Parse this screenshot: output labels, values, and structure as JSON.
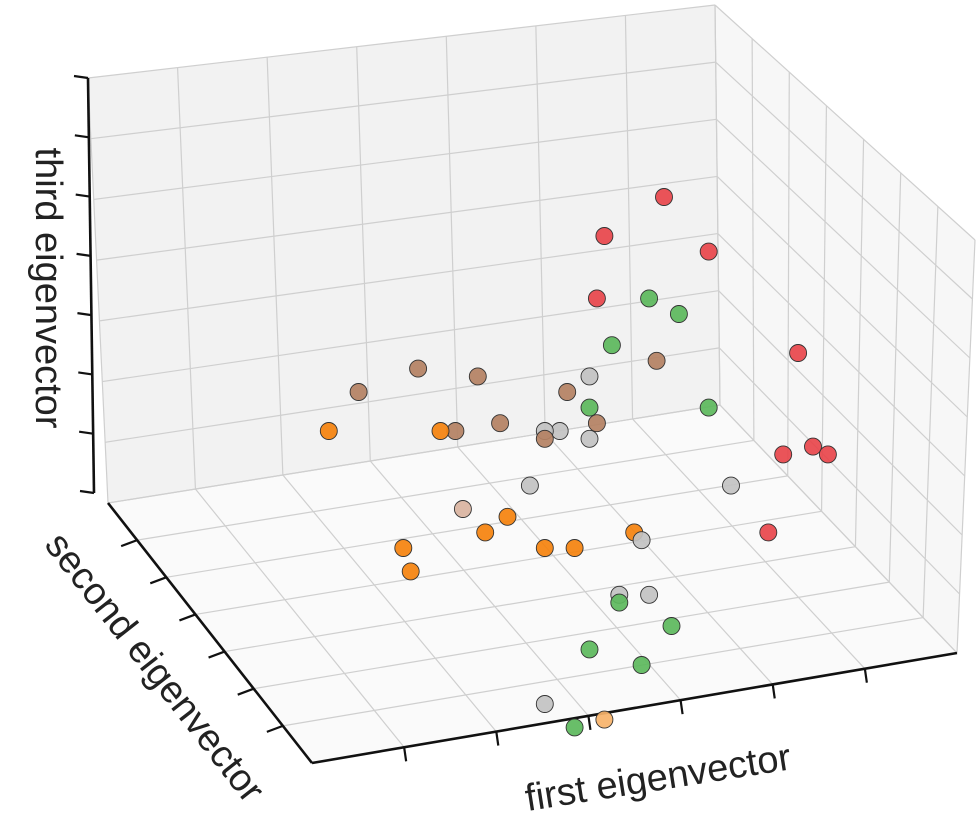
{
  "chart_data": {
    "type": "scatter",
    "title": "",
    "xlabel": "first eigenvector",
    "ylabel": "second eigenvector",
    "zlabel": "third eigenvector",
    "grid": true,
    "colors": {
      "red": "#e8454b",
      "orange": "#f5820d",
      "brown": "#b48163",
      "green": "#5cb85c",
      "gray": "#c2c2c2",
      "light_orange": "#f7b36a",
      "light_brown": "#d9b3a0"
    },
    "points": [
      {
        "x": 0.8,
        "y": 0.2,
        "z": 0.85,
        "color": "red"
      },
      {
        "x": 0.72,
        "y": 0.22,
        "z": 0.8,
        "color": "red"
      },
      {
        "x": 0.86,
        "y": 0.2,
        "z": 0.78,
        "color": "red"
      },
      {
        "x": 0.71,
        "y": 0.3,
        "z": 0.72,
        "color": "red"
      },
      {
        "x": 0.78,
        "y": 0.28,
        "z": 0.72,
        "color": "green"
      },
      {
        "x": 0.82,
        "y": 0.28,
        "z": 0.7,
        "color": "green"
      },
      {
        "x": 0.73,
        "y": 0.34,
        "z": 0.66,
        "color": "green"
      },
      {
        "x": 0.79,
        "y": 0.36,
        "z": 0.64,
        "color": "brown"
      },
      {
        "x": 0.98,
        "y": 0.25,
        "z": 0.65,
        "color": "red"
      },
      {
        "x": 0.96,
        "y": 0.35,
        "z": 0.52,
        "color": "red"
      },
      {
        "x": 1.0,
        "y": 0.33,
        "z": 0.53,
        "color": "red"
      },
      {
        "x": 1.02,
        "y": 0.32,
        "z": 0.52,
        "color": "red"
      },
      {
        "x": 0.94,
        "y": 0.5,
        "z": 0.42,
        "color": "red"
      },
      {
        "x": 0.89,
        "y": 0.55,
        "z": 0.48,
        "color": "gray"
      },
      {
        "x": 0.86,
        "y": 0.45,
        "z": 0.58,
        "color": "green"
      },
      {
        "x": 0.7,
        "y": 0.38,
        "z": 0.62,
        "color": "gray"
      },
      {
        "x": 0.67,
        "y": 0.42,
        "z": 0.6,
        "color": "brown"
      },
      {
        "x": 0.7,
        "y": 0.44,
        "z": 0.58,
        "color": "green"
      },
      {
        "x": 0.71,
        "y": 0.46,
        "z": 0.56,
        "color": "brown"
      },
      {
        "x": 0.66,
        "y": 0.47,
        "z": 0.55,
        "color": "gray"
      },
      {
        "x": 0.7,
        "y": 0.48,
        "z": 0.54,
        "color": "gray"
      },
      {
        "x": 0.64,
        "y": 0.49,
        "z": 0.55,
        "color": "gray"
      },
      {
        "x": 0.64,
        "y": 0.5,
        "z": 0.54,
        "color": "brown"
      },
      {
        "x": 0.62,
        "y": 0.56,
        "z": 0.48,
        "color": "gray"
      },
      {
        "x": 0.55,
        "y": 0.42,
        "z": 0.62,
        "color": "brown"
      },
      {
        "x": 0.47,
        "y": 0.41,
        "z": 0.63,
        "color": "brown"
      },
      {
        "x": 0.58,
        "y": 0.47,
        "z": 0.56,
        "color": "brown"
      },
      {
        "x": 0.52,
        "y": 0.48,
        "z": 0.55,
        "color": "brown"
      },
      {
        "x": 0.5,
        "y": 0.48,
        "z": 0.55,
        "color": "orange"
      },
      {
        "x": 0.39,
        "y": 0.45,
        "z": 0.6,
        "color": "brown"
      },
      {
        "x": 0.35,
        "y": 0.55,
        "z": 0.55,
        "color": "orange"
      },
      {
        "x": 0.53,
        "y": 0.6,
        "z": 0.45,
        "color": "light_brown"
      },
      {
        "x": 0.59,
        "y": 0.62,
        "z": 0.44,
        "color": "orange"
      },
      {
        "x": 0.56,
        "y": 0.65,
        "z": 0.42,
        "color": "orange"
      },
      {
        "x": 0.45,
        "y": 0.7,
        "z": 0.4,
        "color": "orange"
      },
      {
        "x": 0.46,
        "y": 0.73,
        "z": 0.37,
        "color": "orange"
      },
      {
        "x": 0.64,
        "y": 0.68,
        "z": 0.4,
        "color": "orange"
      },
      {
        "x": 0.68,
        "y": 0.7,
        "z": 0.4,
        "color": "orange"
      },
      {
        "x": 0.76,
        "y": 0.68,
        "z": 0.42,
        "color": "orange"
      },
      {
        "x": 0.77,
        "y": 0.68,
        "z": 0.41,
        "color": "gray"
      },
      {
        "x": 0.74,
        "y": 0.77,
        "z": 0.34,
        "color": "gray"
      },
      {
        "x": 0.74,
        "y": 0.78,
        "z": 0.33,
        "color": "green"
      },
      {
        "x": 0.78,
        "y": 0.75,
        "z": 0.34,
        "color": "gray"
      },
      {
        "x": 0.81,
        "y": 0.77,
        "z": 0.3,
        "color": "green"
      },
      {
        "x": 0.7,
        "y": 0.86,
        "z": 0.27,
        "color": "green"
      },
      {
        "x": 0.77,
        "y": 0.86,
        "z": 0.25,
        "color": "green"
      },
      {
        "x": 0.64,
        "y": 0.96,
        "z": 0.2,
        "color": "gray"
      },
      {
        "x": 0.68,
        "y": 0.98,
        "z": 0.17,
        "color": "green"
      },
      {
        "x": 0.72,
        "y": 0.96,
        "z": 0.18,
        "color": "light_orange"
      }
    ]
  }
}
